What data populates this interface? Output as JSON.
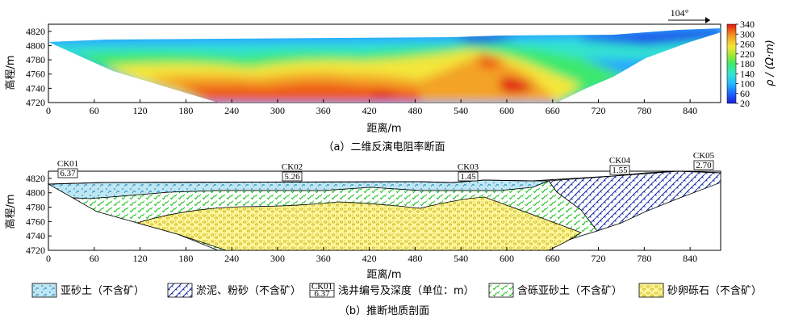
{
  "panel_a": {
    "direction_label": "104°",
    "y_axis_label": "高程/m",
    "x_axis_label": "距离/m",
    "y_ticks": [
      "4820",
      "4800",
      "4780",
      "4760",
      "4740",
      "4720"
    ],
    "x_ticks": [
      "0",
      "60",
      "120",
      "180",
      "240",
      "300",
      "360",
      "420",
      "480",
      "540",
      "600",
      "660",
      "720",
      "780",
      "840"
    ],
    "colorbar_title": "ρ / (Ω·m)",
    "colorbar_ticks": [
      "340",
      "300",
      "260",
      "220",
      "180",
      "140",
      "100",
      "60",
      "20"
    ],
    "caption": "（a）二维反演电阻率断面"
  },
  "panel_b": {
    "y_axis_label": "高程/m",
    "x_axis_label": "距离/m",
    "y_ticks": [
      "4820",
      "4800",
      "4780",
      "4760",
      "4740",
      "4720"
    ],
    "x_ticks": [
      "0",
      "60",
      "120",
      "180",
      "240",
      "300",
      "360",
      "420",
      "480",
      "540",
      "600",
      "660",
      "720",
      "780",
      "840"
    ],
    "boreholes": [
      {
        "id": "CK01",
        "depth": "6.37"
      },
      {
        "id": "CK02",
        "depth": "5.26"
      },
      {
        "id": "CK03",
        "depth": "1.45"
      },
      {
        "id": "CK04",
        "depth": "1.55"
      },
      {
        "id": "CK05",
        "depth": "2.70"
      }
    ],
    "caption": "（b）推断地质剖面"
  },
  "legend": {
    "items": [
      {
        "label": "亚砂土（不含矿）"
      },
      {
        "label": "淤泥、粉砂（不含矿）"
      },
      {
        "label": "浅井编号及深度（单位：m）",
        "sample_id": "CK01",
        "sample_depth": "6.37"
      },
      {
        "label": "含砾亚砂土（不含矿）"
      },
      {
        "label": "砂卵砾石（不含矿）"
      }
    ]
  },
  "chart_data": [
    {
      "type": "heatmap",
      "title": "二维反演电阻率断面",
      "xlabel": "距离/m",
      "ylabel": "高程/m",
      "xlim": [
        0,
        880
      ],
      "ylim": [
        4720,
        4830
      ],
      "colorbar": {
        "label": "ρ / (Ω·m)",
        "range": [
          20,
          340
        ],
        "ticks": [
          20,
          60,
          100,
          140,
          180,
          220,
          260,
          300,
          340
        ],
        "colors": [
          "#1d1fd6",
          "#1a64ff",
          "#28b9ff",
          "#33e3d0",
          "#3ee86e",
          "#9ae637",
          "#f4e63a",
          "#f3a326",
          "#ee5a17",
          "#e01512"
        ]
      },
      "grid": false
    },
    {
      "type": "table",
      "title": "推断地质剖面",
      "xlabel": "距离/m",
      "ylabel": "高程/m",
      "xlim": [
        0,
        880
      ],
      "ylim": [
        4720,
        4830
      ],
      "boreholes": [
        {
          "id": "CK01",
          "depth": 6.37
        },
        {
          "id": "CK02",
          "depth": 5.26
        },
        {
          "id": "CK03",
          "depth": 1.45
        },
        {
          "id": "CK04",
          "depth": 1.55
        },
        {
          "id": "CK05",
          "depth": 2.7
        }
      ],
      "units": [
        "亚砂土（不含矿）",
        "淤泥、粉砂（不含矿）",
        "含砾亚砂土（不含矿）",
        "砂卵砾石（不含矿）"
      ]
    }
  ]
}
